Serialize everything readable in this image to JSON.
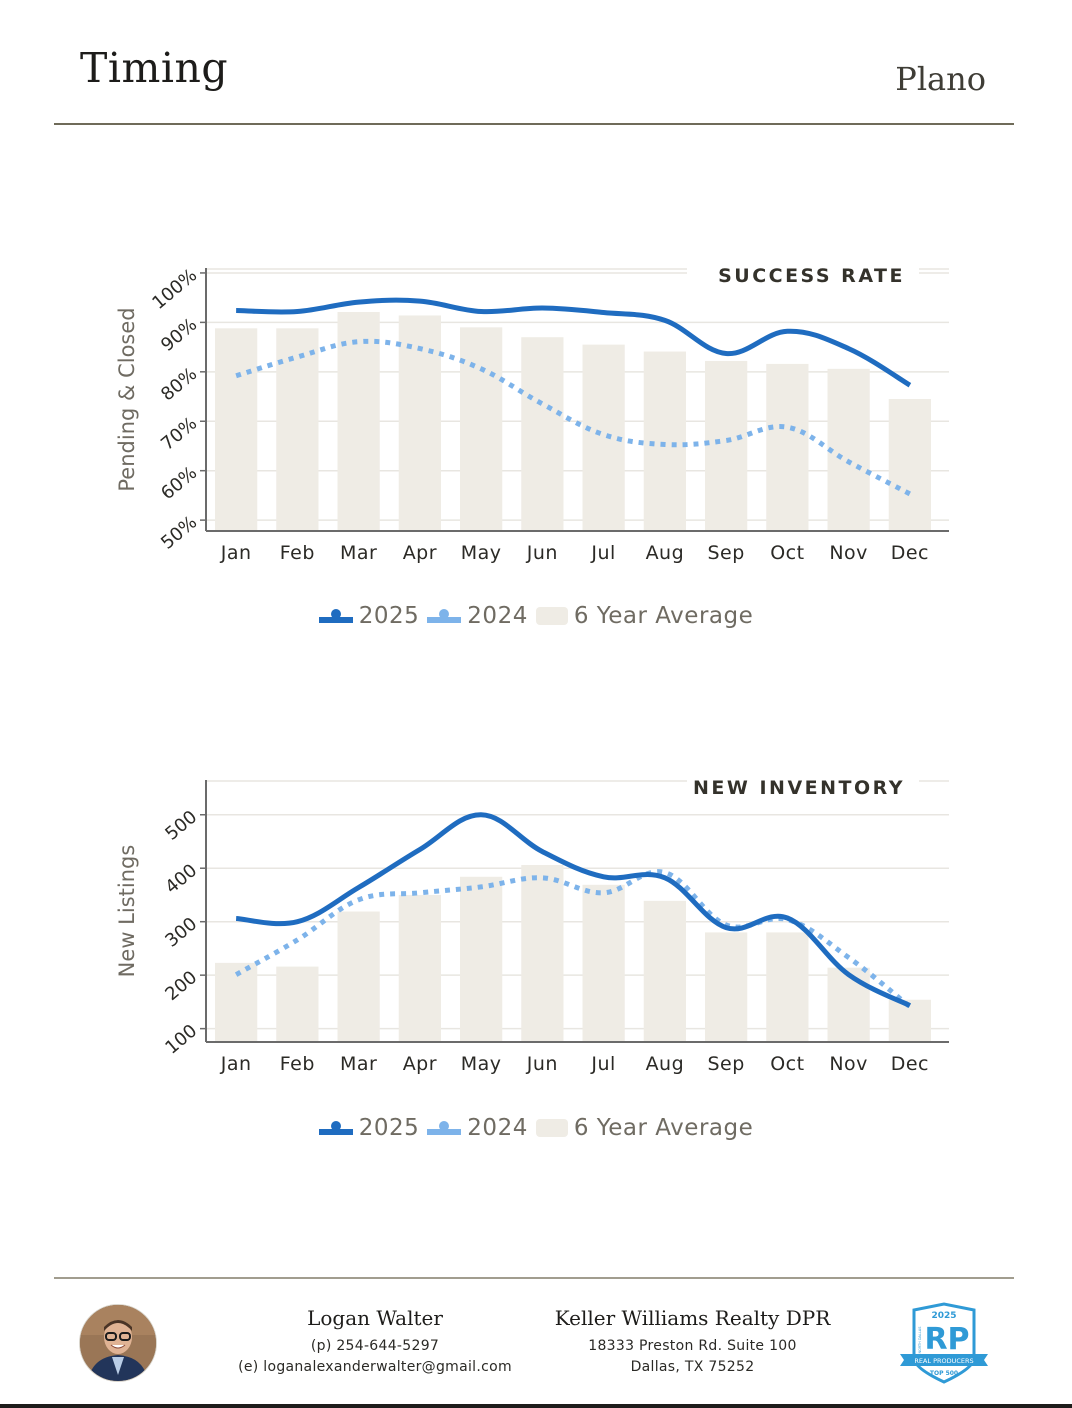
{
  "header": {
    "title": "Timing",
    "city": "Plano"
  },
  "chart_data": [
    {
      "type": "bar",
      "title": "SUCCESS RATE",
      "xlabel": "",
      "ylabel": "Pending & Closed",
      "categories": [
        "Jan",
        "Feb",
        "Mar",
        "Apr",
        "May",
        "Jun",
        "Jul",
        "Aug",
        "Sep",
        "Oct",
        "Nov",
        "Dec"
      ],
      "yticks": [
        50,
        60,
        70,
        80,
        90,
        100
      ],
      "ytick_labels": [
        "50%",
        "60%",
        "70%",
        "80%",
        "90%",
        "100%"
      ],
      "ylim": [
        47.8,
        101
      ],
      "grid": true,
      "legend_position": "bottom-center",
      "series": [
        {
          "name": "2025",
          "kind": "line",
          "style": "solid",
          "color": "#1f6cc0",
          "values": [
            92.4,
            92.2,
            94.1,
            94.3,
            92.2,
            92.9,
            92.0,
            90.4,
            83.7,
            88.2,
            84.7,
            77.3
          ]
        },
        {
          "name": "2024",
          "kind": "line",
          "style": "dotted",
          "color": "#7db3ea",
          "values": [
            79.2,
            83.0,
            86.1,
            84.7,
            80.6,
            73.5,
            67.3,
            65.3,
            66.1,
            68.8,
            61.8,
            55.3
          ]
        },
        {
          "name": "6 Year Average",
          "kind": "bar",
          "color": "#efece5",
          "values": [
            88.8,
            88.8,
            92.1,
            91.4,
            89.0,
            87.0,
            85.5,
            84.1,
            82.2,
            81.6,
            80.6,
            74.5
          ]
        }
      ]
    },
    {
      "type": "bar",
      "title": "NEW INVENTORY",
      "xlabel": "",
      "ylabel": "New Listings",
      "categories": [
        "Jan",
        "Feb",
        "Mar",
        "Apr",
        "May",
        "Jun",
        "Jul",
        "Aug",
        "Sep",
        "Oct",
        "Nov",
        "Dec"
      ],
      "yticks": [
        100,
        200,
        300,
        400,
        500
      ],
      "ytick_labels": [
        "100",
        "200",
        "300",
        "400",
        "500"
      ],
      "ylim": [
        75,
        565
      ],
      "grid": true,
      "legend_position": "bottom-center",
      "series": [
        {
          "name": "2025",
          "kind": "line",
          "style": "solid",
          "color": "#1f6cc0",
          "values": [
            306,
            300,
            364,
            435,
            500,
            431,
            384,
            382,
            289,
            307,
            201,
            143
          ]
        },
        {
          "name": "2024",
          "kind": "line",
          "style": "dotted",
          "color": "#7db3ea",
          "values": [
            201,
            266,
            341,
            354,
            365,
            382,
            354,
            392,
            294,
            304,
            233,
            141
          ]
        },
        {
          "name": "6 Year Average",
          "kind": "bar",
          "color": "#efece5",
          "values": [
            223,
            216,
            319,
            350,
            384,
            406,
            369,
            339,
            280,
            280,
            214,
            154
          ]
        }
      ]
    }
  ],
  "legend": {
    "items": [
      {
        "label": "2025",
        "color": "#1f6cc0"
      },
      {
        "label": "2024",
        "color": "#7db3ea"
      },
      {
        "label": "6 Year Average",
        "color": "#efece5"
      }
    ]
  },
  "footer": {
    "agent_name": "Logan Walter",
    "phone": "(p) 254-644-5297",
    "email": "(e) loganalexanderwalter@gmail.com",
    "brokerage": "Keller Williams Realty DPR",
    "address_line1": "18333 Preston Rd. Suite 100",
    "address_line2": "Dallas, TX 75252",
    "badge": {
      "year": "2025",
      "letters": "RP",
      "region": "NORTH DALLAS",
      "ribbon": "REAL PRODUCERS",
      "rank": "TOP 500",
      "color": "#2f9ad6"
    }
  }
}
